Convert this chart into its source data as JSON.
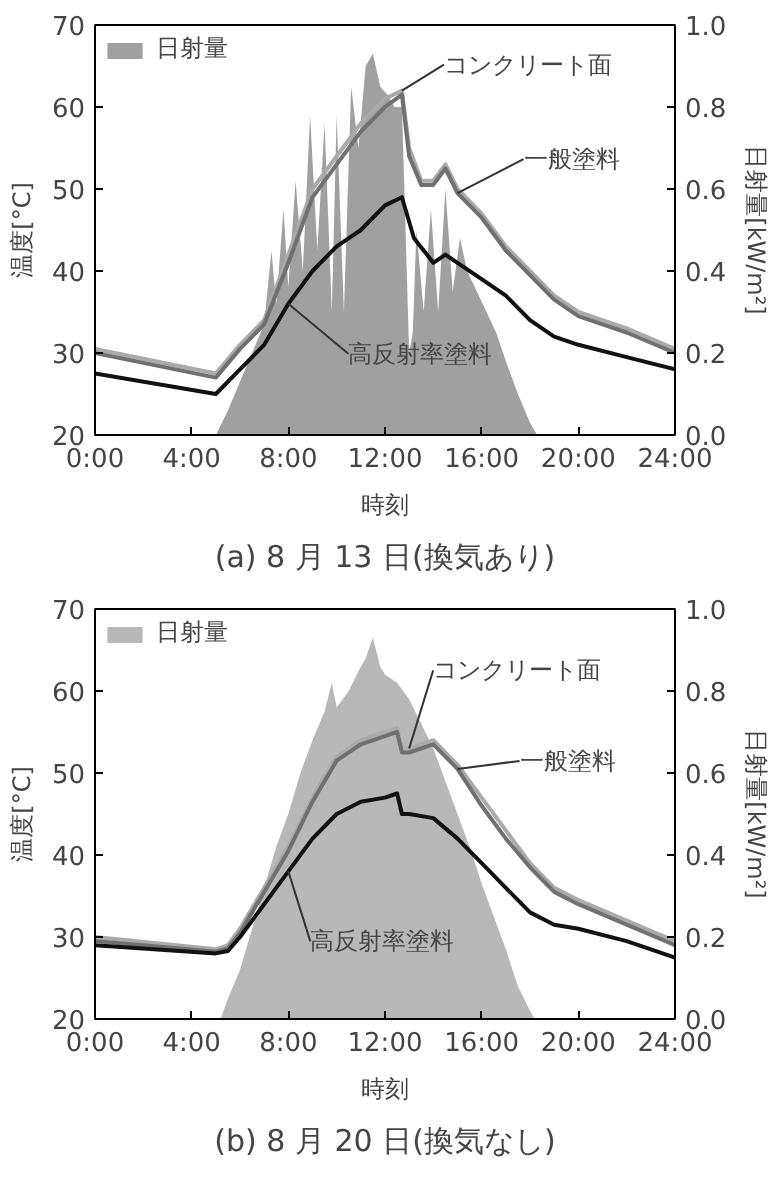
{
  "chart_data": [
    {
      "type": "line",
      "title": "(a) 8 月 13 日(換気あり)",
      "xlabel": "時刻",
      "ylabel": "温度[°C]",
      "y2label": "日射量[kW/m²]",
      "xlim": [
        0,
        24
      ],
      "xticks": [
        {
          "value": 0,
          "label": "0:00"
        },
        {
          "value": 4,
          "label": "4:00"
        },
        {
          "value": 8,
          "label": "8:00"
        },
        {
          "value": 12,
          "label": "12:00"
        },
        {
          "value": 16,
          "label": "16:00"
        },
        {
          "value": 20,
          "label": "20:00"
        },
        {
          "value": 24,
          "label": "24:00"
        }
      ],
      "ylim": [
        20,
        70
      ],
      "yticks": [
        20,
        30,
        40,
        50,
        60,
        70
      ],
      "y2lim": [
        0,
        1.0
      ],
      "y2ticks": [
        {
          "value": 0,
          "label": "0.0"
        },
        {
          "value": 0.2,
          "label": "0.2"
        },
        {
          "value": 0.4,
          "label": "0.4"
        },
        {
          "value": 0.6,
          "label": "0.6"
        },
        {
          "value": 0.8,
          "label": "0.8"
        },
        {
          "value": 1.0,
          "label": "1.0"
        }
      ],
      "grid": false,
      "legend": "top left",
      "series": [
        {
          "name": "日射量",
          "type": "area",
          "axis": "y2",
          "color": "#a0a0a0",
          "x": [
            5.0,
            5.5,
            6.0,
            6.5,
            7.0,
            7.3,
            7.5,
            7.8,
            8.0,
            8.3,
            8.6,
            8.9,
            9.2,
            9.5,
            9.8,
            10.0,
            10.3,
            10.6,
            10.9,
            11.2,
            11.5,
            11.8,
            12.1,
            12.4,
            12.7,
            13.0,
            13.15,
            13.3,
            13.6,
            13.9,
            14.2,
            14.5,
            14.8,
            15.1,
            15.4,
            15.8,
            16.2,
            16.6,
            17.0,
            17.5,
            18.0,
            18.3
          ],
          "values": [
            0.0,
            0.06,
            0.13,
            0.2,
            0.27,
            0.45,
            0.32,
            0.55,
            0.36,
            0.62,
            0.4,
            0.78,
            0.45,
            0.76,
            0.3,
            0.78,
            0.3,
            0.85,
            0.7,
            0.9,
            0.93,
            0.85,
            0.83,
            0.8,
            0.8,
            0.2,
            0.25,
            0.5,
            0.3,
            0.55,
            0.3,
            0.6,
            0.35,
            0.48,
            0.4,
            0.35,
            0.3,
            0.25,
            0.18,
            0.1,
            0.03,
            0.0
          ]
        },
        {
          "color": "#aaaaaa",
          "x": [
            0,
            5,
            6,
            7,
            8,
            9,
            10,
            11,
            12,
            12.7,
            13,
            13.5,
            14,
            14.5,
            15,
            16,
            17,
            18,
            19,
            20,
            22,
            24
          ],
          "values": [
            30.5,
            27.5,
            31,
            34,
            42,
            50,
            54,
            58,
            61,
            62,
            55,
            51,
            51,
            53,
            50,
            47,
            43,
            40,
            37,
            35,
            33,
            30.5
          ]
        },
        {
          "color": "#707070",
          "x": [
            0,
            5,
            6,
            7,
            8,
            9,
            10,
            11,
            12,
            12.7,
            13,
            13.5,
            14,
            14.5,
            15,
            16,
            17,
            18,
            19,
            20,
            22,
            24
          ],
          "values": [
            30,
            27,
            30.5,
            33.5,
            41,
            49,
            53,
            57,
            60,
            61.5,
            54,
            50.5,
            50.5,
            52.5,
            49.5,
            46.5,
            42.5,
            39.5,
            36.5,
            34.5,
            32.5,
            30
          ]
        },
        {
          "color": "#111111",
          "x": [
            0,
            5,
            6,
            7,
            8,
            9,
            10,
            11,
            12,
            12.7,
            13.2,
            14,
            14.5,
            15,
            16,
            17,
            18,
            19,
            20,
            22,
            24
          ],
          "values": [
            27.5,
            25,
            28,
            31,
            36,
            40,
            43,
            45,
            48,
            49,
            44,
            41,
            42,
            41,
            39,
            37,
            34,
            32,
            31,
            29.5,
            28
          ]
        }
      ],
      "annotations": [
        {
          "text": "コンクリート面",
          "x": 12.7,
          "y": 62
        },
        {
          "text": "一般塗料",
          "x": 15,
          "y": 49.5
        },
        {
          "text": "高反射率塗料",
          "x": 8,
          "y": 36
        }
      ]
    },
    {
      "type": "line",
      "title": "(b) 8 月 20 日(換気なし)",
      "xlabel": "時刻",
      "ylabel": "温度[°C]",
      "y2label": "日射量[kW/m²]",
      "xlim": [
        0,
        24
      ],
      "xticks": [
        {
          "value": 0,
          "label": "0:00"
        },
        {
          "value": 4,
          "label": "4:00"
        },
        {
          "value": 8,
          "label": "8:00"
        },
        {
          "value": 12,
          "label": "12:00"
        },
        {
          "value": 16,
          "label": "16:00"
        },
        {
          "value": 20,
          "label": "20:00"
        },
        {
          "value": 24,
          "label": "24:00"
        }
      ],
      "ylim": [
        20,
        70
      ],
      "yticks": [
        20,
        30,
        40,
        50,
        60,
        70
      ],
      "y2lim": [
        0,
        1.0
      ],
      "y2ticks": [
        {
          "value": 0,
          "label": "0.0"
        },
        {
          "value": 0.2,
          "label": "0.2"
        },
        {
          "value": 0.4,
          "label": "0.4"
        },
        {
          "value": 0.6,
          "label": "0.6"
        },
        {
          "value": 0.8,
          "label": "0.8"
        },
        {
          "value": 1.0,
          "label": "1.0"
        }
      ],
      "grid": false,
      "legend": "top left",
      "series": [
        {
          "name": "日射量",
          "type": "area",
          "axis": "y2",
          "color": "#b8b8b8",
          "x": [
            5.2,
            5.5,
            6,
            6.5,
            7,
            7.5,
            8,
            8.5,
            9,
            9.5,
            9.8,
            10.0,
            10.5,
            11,
            11.2,
            11.5,
            11.8,
            12,
            12.5,
            13,
            13.5,
            14,
            14.5,
            15,
            15.5,
            16,
            16.5,
            17,
            17.5,
            18,
            18.2
          ],
          "values": [
            0,
            0.05,
            0.12,
            0.22,
            0.32,
            0.42,
            0.5,
            0.6,
            0.68,
            0.75,
            0.82,
            0.76,
            0.8,
            0.86,
            0.88,
            0.93,
            0.86,
            0.84,
            0.82,
            0.78,
            0.72,
            0.66,
            0.58,
            0.5,
            0.42,
            0.33,
            0.25,
            0.17,
            0.08,
            0.02,
            0
          ]
        },
        {
          "color": "#aaaaaa",
          "x": [
            0,
            5,
            5.5,
            6,
            7,
            8,
            9,
            10,
            11,
            12,
            12.5,
            12.7,
            13,
            14,
            15,
            16,
            17,
            18,
            19,
            20,
            22,
            24
          ],
          "values": [
            30,
            28.5,
            29,
            31,
            36,
            41,
            47,
            52,
            54,
            55,
            55.5,
            53,
            53,
            54,
            51,
            47,
            43,
            39,
            36,
            34.5,
            32,
            29.5
          ]
        },
        {
          "color": "#707070",
          "x": [
            0,
            5,
            5.5,
            6,
            7,
            8,
            9,
            10,
            11,
            12,
            12.5,
            12.7,
            13,
            14,
            15,
            16,
            17,
            18,
            19,
            20,
            22,
            24
          ],
          "values": [
            29.5,
            28.2,
            28.6,
            30.5,
            35.5,
            40.5,
            46.5,
            51.5,
            53.5,
            54.5,
            55,
            52.5,
            52.5,
            53.5,
            50.5,
            46,
            42,
            38.5,
            35.5,
            34,
            31.5,
            29
          ]
        },
        {
          "color": "#111111",
          "x": [
            0,
            5,
            5.5,
            6,
            7,
            8,
            9,
            10,
            11,
            12,
            12.5,
            12.7,
            13,
            14,
            15,
            16,
            17,
            18,
            19,
            20,
            22,
            24
          ],
          "values": [
            29,
            28,
            28.3,
            30,
            34,
            38,
            42,
            45,
            46.5,
            47,
            47.5,
            45,
            45,
            44.5,
            42,
            39,
            36,
            33,
            31.5,
            31,
            29.5,
            27.5
          ]
        }
      ],
      "annotations": [
        {
          "text": "コンクリート面",
          "x": 13,
          "y": 53
        },
        {
          "text": "一般塗料",
          "x": 15,
          "y": 50.5
        },
        {
          "text": "高反射率塗料",
          "x": 8,
          "y": 38
        }
      ]
    }
  ]
}
